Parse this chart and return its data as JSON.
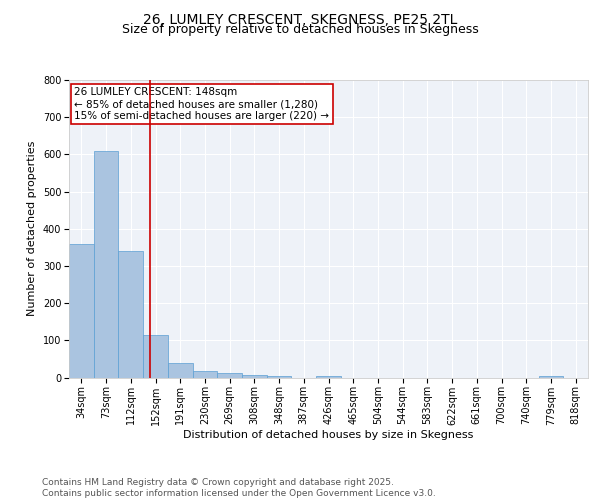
{
  "title": "26, LUMLEY CRESCENT, SKEGNESS, PE25 2TL",
  "subtitle": "Size of property relative to detached houses in Skegness",
  "xlabel": "Distribution of detached houses by size in Skegness",
  "ylabel": "Number of detached properties",
  "categories": [
    "34sqm",
    "73sqm",
    "112sqm",
    "152sqm",
    "191sqm",
    "230sqm",
    "269sqm",
    "308sqm",
    "348sqm",
    "387sqm",
    "426sqm",
    "465sqm",
    "504sqm",
    "544sqm",
    "583sqm",
    "622sqm",
    "661sqm",
    "700sqm",
    "740sqm",
    "779sqm",
    "818sqm"
  ],
  "values": [
    360,
    610,
    340,
    115,
    40,
    18,
    13,
    8,
    4,
    0,
    5,
    0,
    0,
    0,
    0,
    0,
    0,
    0,
    0,
    5,
    0
  ],
  "bar_color": "#aac4e0",
  "bar_edge_color": "#5a9fd4",
  "vline_x_index": 2.77,
  "vline_color": "#cc0000",
  "annotation_text": "26 LUMLEY CRESCENT: 148sqm\n← 85% of detached houses are smaller (1,280)\n15% of semi-detached houses are larger (220) →",
  "annotation_box_color": "#ffffff",
  "annotation_box_edge_color": "#cc0000",
  "ylim": [
    0,
    800
  ],
  "yticks": [
    0,
    100,
    200,
    300,
    400,
    500,
    600,
    700,
    800
  ],
  "footer_text": "Contains HM Land Registry data © Crown copyright and database right 2025.\nContains public sector information licensed under the Open Government Licence v3.0.",
  "background_color": "#eef2f8",
  "grid_color": "#ffffff",
  "title_fontsize": 10,
  "subtitle_fontsize": 9,
  "axis_label_fontsize": 8,
  "tick_fontsize": 7,
  "annotation_fontsize": 7.5,
  "footer_fontsize": 6.5
}
